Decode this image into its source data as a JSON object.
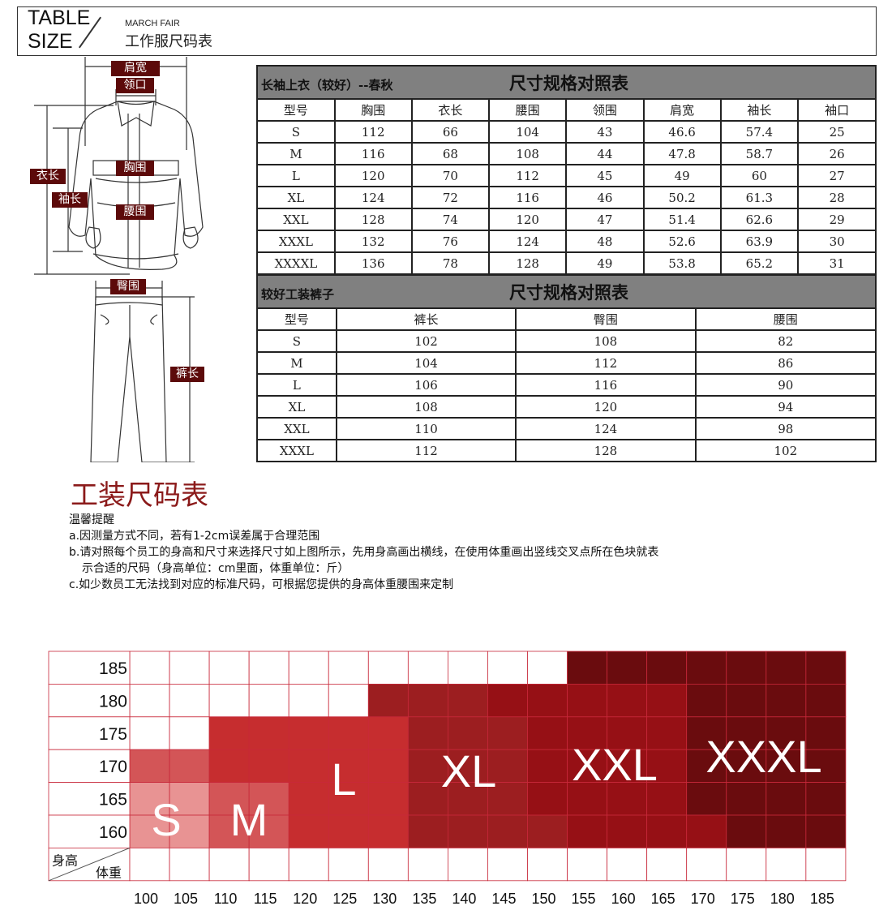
{
  "header": {
    "title_en_line1": "TABLE",
    "title_en_line2": "SIZE",
    "subtitle_en": "MARCH FAIR",
    "title_cn": "工作服尺码表"
  },
  "illustration": {
    "labels": {
      "shoulder": "肩宽",
      "collar": "领口",
      "length": "衣长",
      "sleeve": "袖长",
      "chest": "胸围",
      "waist": "腰围",
      "hip": "臀围",
      "pants_length": "裤长"
    }
  },
  "jacket_table": {
    "title_left": "长袖上衣（较好）--春秋",
    "title_main": "尺寸规格对照表",
    "columns": [
      "型号",
      "胸围",
      "衣长",
      "腰围",
      "领围",
      "肩宽",
      "袖长",
      "袖口"
    ],
    "rows": [
      [
        "S",
        "112",
        "66",
        "104",
        "43",
        "46.6",
        "57.4",
        "25"
      ],
      [
        "M",
        "116",
        "68",
        "108",
        "44",
        "47.8",
        "58.7",
        "26"
      ],
      [
        "L",
        "120",
        "70",
        "112",
        "45",
        "49",
        "60",
        "27"
      ],
      [
        "XL",
        "124",
        "72",
        "116",
        "46",
        "50.2",
        "61.3",
        "28"
      ],
      [
        "XXL",
        "128",
        "74",
        "120",
        "47",
        "51.4",
        "62.6",
        "29"
      ],
      [
        "XXXL",
        "132",
        "76",
        "124",
        "48",
        "52.6",
        "63.9",
        "30"
      ],
      [
        "XXXXL",
        "136",
        "78",
        "128",
        "49",
        "53.8",
        "65.2",
        "31"
      ]
    ]
  },
  "pants_table": {
    "title_left": "较好工装裤子",
    "title_main": "尺寸规格对照表",
    "columns": [
      "型号",
      "裤长",
      "臀围",
      "腰围"
    ],
    "rows": [
      [
        "S",
        "102",
        "108",
        "82"
      ],
      [
        "M",
        "104",
        "112",
        "86"
      ],
      [
        "L",
        "106",
        "116",
        "90"
      ],
      [
        "XL",
        "108",
        "120",
        "94"
      ],
      [
        "XXL",
        "110",
        "124",
        "98"
      ],
      [
        "XXXL",
        "112",
        "128",
        "102"
      ]
    ]
  },
  "notes": {
    "title": "工装尺码表",
    "subtitle": "温馨提醒",
    "items": [
      "a.因测量方式不同，若有1-2cm误差属于合理范围",
      "b.请对照每个员工的身高和尺寸来选择尺寸如上图所示，先用身高画出横线，在使用体重画出竖线交叉点所在色块就表",
      "示合适的尺码（身高单位：cm里面，体重单位：斤）",
      "c.如少数员工无法找到对应的标准尺码，可根据您提供的身高体重腰围来定制"
    ]
  },
  "chart_data": {
    "type": "heatmap",
    "ylabel": "身高",
    "xlabel": "体重",
    "y": [
      185,
      180,
      175,
      170,
      165,
      160
    ],
    "x": [
      100,
      105,
      110,
      115,
      120,
      125,
      130,
      135,
      140,
      145,
      150,
      155,
      160,
      165,
      170,
      175,
      180,
      185
    ],
    "sizes": [
      "S",
      "M",
      "L",
      "XL",
      "XXL",
      "XXXL"
    ],
    "colors": {
      "S": "#e89393",
      "M": "#d35557",
      "L": "#c62d2f",
      "XL": "#9c1e20",
      "XXL": "#961015",
      "XXXL": "#6a0c0e",
      "": "#ffffff"
    },
    "grid": [
      [
        "",
        "",
        "",
        "",
        "",
        "",
        "",
        "",
        "",
        "",
        "",
        "XXXL",
        "XXXL",
        "XXXL",
        "XXXL",
        "XXXL",
        "XXXL",
        "XXXL"
      ],
      [
        "",
        "",
        "",
        "",
        "",
        "",
        "XL",
        "XL",
        "XL",
        "XXL",
        "XXL",
        "XXL",
        "XXL",
        "XXL",
        "XXXL",
        "XXXL",
        "XXXL",
        "XXXL"
      ],
      [
        "",
        "",
        "L",
        "L",
        "L",
        "L",
        "L",
        "XL",
        "XL",
        "XL",
        "XXL",
        "XXL",
        "XXL",
        "XXL",
        "XXXL",
        "XXXL",
        "XXXL",
        "XXXL"
      ],
      [
        "M",
        "M",
        "L",
        "L",
        "L",
        "L",
        "L",
        "XL",
        "XL",
        "XL",
        "XXL",
        "XXL",
        "XXL",
        "XXL",
        "XXXL",
        "XXXL",
        "XXXL",
        "XXXL"
      ],
      [
        "S",
        "S",
        "M",
        "M",
        "L",
        "L",
        "L",
        "XL",
        "XL",
        "XL",
        "XXL",
        "XXL",
        "XXL",
        "XXL",
        "XXXL",
        "XXXL",
        "XXXL",
        "XXXL"
      ],
      [
        "S",
        "S",
        "M",
        "M",
        "L",
        "L",
        "L",
        "XL",
        "XL",
        "XL",
        "XL",
        "XXL",
        "XXL",
        "XXL",
        "XXL",
        "XXXL",
        "XXXL",
        "XXXL"
      ]
    ]
  }
}
